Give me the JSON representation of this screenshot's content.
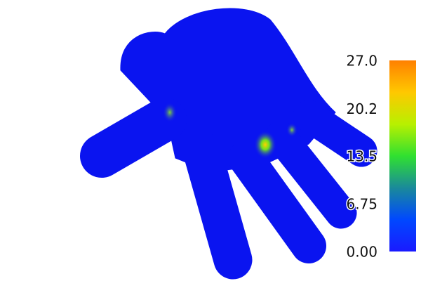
{
  "chart_data": {
    "type": "colorbar",
    "clim": [
      0,
      27
    ],
    "cticks": [
      {
        "value": 0,
        "label": "0.00"
      },
      6.75,
      13.5,
      20.2,
      {
        "value": 27,
        "label": "27.0"
      }
    ],
    "colormap": [
      "#1a1aff",
      "#0048ff",
      "#1a8a9a",
      "#30e030",
      "#b8f000",
      "#ffc800",
      "#ff8000"
    ],
    "surface_color": "#0a14f0"
  }
}
